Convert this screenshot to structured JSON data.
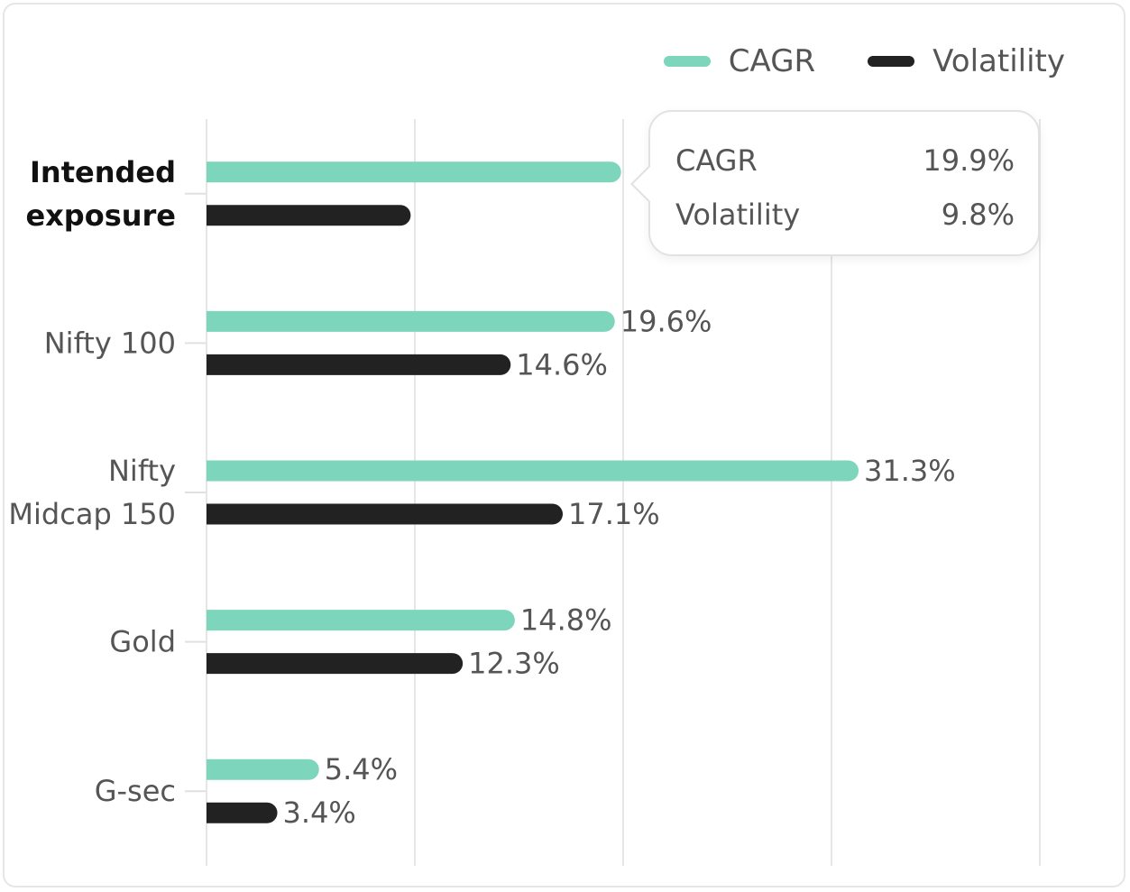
{
  "chart_data": {
    "type": "bar",
    "orientation": "horizontal",
    "categories": [
      "Intended exposure",
      "Nifty 100",
      "Nifty Midcap 150",
      "Gold",
      "G-sec"
    ],
    "category_lines": [
      [
        "Intended",
        "exposure"
      ],
      [
        "Nifty 100"
      ],
      [
        "Nifty",
        "Midcap 150"
      ],
      [
        "Gold"
      ],
      [
        "G-sec"
      ]
    ],
    "highlighted_category": "Intended exposure",
    "series": [
      {
        "name": "CAGR",
        "color": "#7dd5bc",
        "values": [
          19.9,
          19.6,
          31.3,
          14.8,
          5.4
        ],
        "value_labels": [
          null,
          "19.6%",
          "31.3%",
          "14.8%",
          "5.4%"
        ]
      },
      {
        "name": "Volatility",
        "color": "#222222",
        "values": [
          9.8,
          14.6,
          17.1,
          12.3,
          3.4
        ],
        "value_labels": [
          null,
          "14.6%",
          "17.1%",
          "12.3%",
          "3.4%"
        ]
      }
    ],
    "xlim": [
      0,
      40
    ],
    "grid": true,
    "legend_position": "top-right"
  },
  "legend": [
    {
      "label": "CAGR",
      "color": "#7dd5bc"
    },
    {
      "label": "Volatility",
      "color": "#222222"
    }
  ],
  "tooltip": {
    "rows": [
      {
        "label": "CAGR",
        "value": "19.9%"
      },
      {
        "label": "Volatility",
        "value": "9.8%"
      }
    ]
  }
}
